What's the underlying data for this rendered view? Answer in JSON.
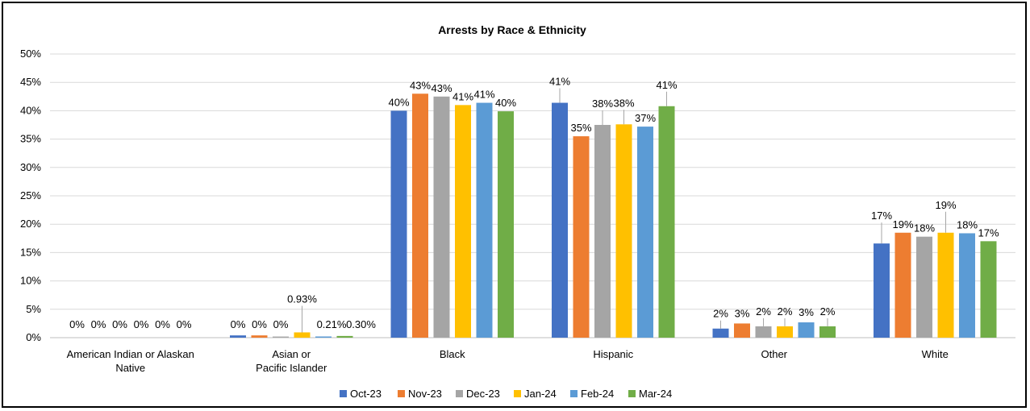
{
  "chart_data": {
    "type": "bar",
    "title": "Arrests by Race & Ethnicity",
    "categories": [
      [
        "American Indian or Alaskan",
        "Native"
      ],
      [
        "Asian or",
        "Pacific Islander"
      ],
      [
        "Black"
      ],
      [
        "Hispanic"
      ],
      [
        "Other"
      ],
      [
        "White"
      ]
    ],
    "series": [
      {
        "name": "Oct-23",
        "color": "#4472C4",
        "values": [
          0,
          0.4,
          40.0,
          41.4,
          1.6,
          16.6
        ],
        "labels": [
          "0%",
          "0%",
          "40%",
          "41%",
          "2%",
          "17%"
        ]
      },
      {
        "name": "Nov-23",
        "color": "#ED7D31",
        "values": [
          0,
          0.4,
          43.0,
          35.5,
          2.5,
          18.5
        ],
        "labels": [
          "0%",
          "0%",
          "43%",
          "35%",
          "3%",
          "19%"
        ]
      },
      {
        "name": "Dec-23",
        "color": "#A5A5A5",
        "values": [
          0,
          0.2,
          42.5,
          37.5,
          2.0,
          17.8
        ],
        "labels": [
          "0%",
          "0%",
          "43%",
          "38%",
          "2%",
          "18%"
        ]
      },
      {
        "name": "Jan-24",
        "color": "#FFC000",
        "values": [
          0,
          0.93,
          41.0,
          37.6,
          2.0,
          18.5
        ],
        "labels": [
          "0%",
          "0.93%",
          "41%",
          "38%",
          "2%",
          "19%"
        ]
      },
      {
        "name": "Feb-24",
        "color": "#5B9BD5",
        "values": [
          0,
          0.21,
          41.4,
          37.2,
          2.7,
          18.4
        ],
        "labels": [
          "0%",
          "0.21%",
          "41%",
          "37%",
          "3%",
          "18%"
        ]
      },
      {
        "name": "Mar-24",
        "color": "#70AD47",
        "values": [
          0,
          0.3,
          39.9,
          40.8,
          2.0,
          17.0
        ],
        "labels": [
          "0%",
          "0.30%",
          "40%",
          "41%",
          "2%",
          "17%"
        ]
      }
    ],
    "y_ticks": [
      "0%",
      "5%",
      "10%",
      "15%",
      "20%",
      "25%",
      "30%",
      "35%",
      "40%",
      "45%",
      "50%"
    ],
    "ylim": [
      0,
      50
    ],
    "grid": true,
    "legend": "bottom-center"
  }
}
